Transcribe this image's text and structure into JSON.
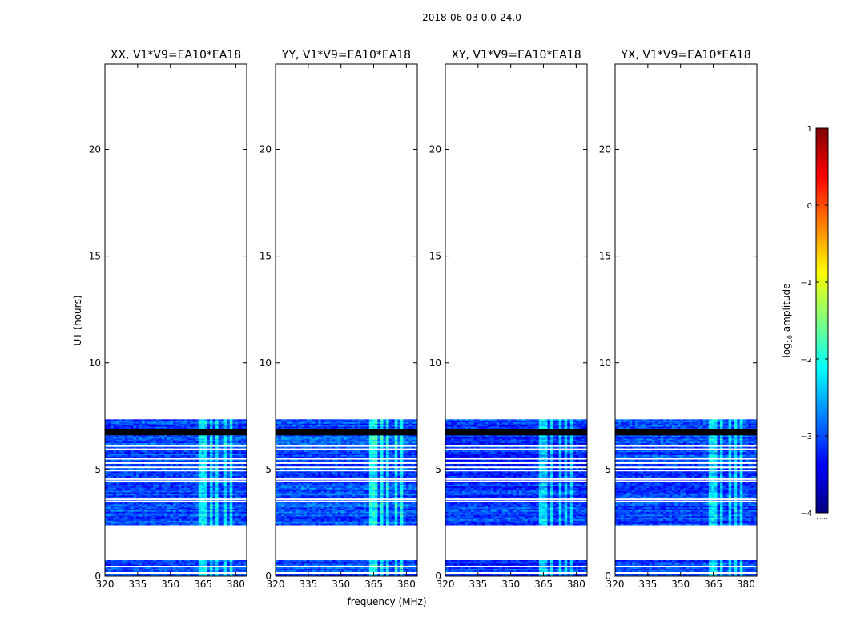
{
  "figure": {
    "suptitle": "2018-06-03 0.0-24.0",
    "ylabel": "UT (hours)",
    "xlabel": "frequency (MHz)"
  },
  "colorbar": {
    "label_prefix": "log",
    "label_sub": "10",
    "label_suffix": " amplitude",
    "range": [
      -4,
      1
    ],
    "ticks": [
      "1",
      "0",
      "−1",
      "−2",
      "−3",
      "−4"
    ],
    "tick_values": [
      1,
      0,
      -1,
      -2,
      -3,
      -4
    ],
    "footer": "......",
    "colormap": [
      "#00007f",
      "#0000ff",
      "#007fff",
      "#00ffff",
      "#7fff7f",
      "#ffff00",
      "#ff7f00",
      "#ff0000",
      "#7f0000"
    ]
  },
  "chart_data": [
    {
      "type": "heatmap",
      "title": "XX, V1*V9=EA10*EA18",
      "xlabel": "frequency (MHz)",
      "ylabel": "UT (hours)",
      "xlim": [
        320,
        385
      ],
      "ylim": [
        0,
        24
      ],
      "xticks": [
        320,
        335,
        350,
        365,
        380
      ],
      "yticks": [
        0,
        5,
        10,
        15,
        20
      ],
      "ytick_labels": [
        "0",
        "5",
        "10",
        "15",
        "20"
      ],
      "xtick_labels": [
        "320",
        "335",
        "350",
        "365",
        "380"
      ],
      "data_time_ranges_hours": [
        [
          0.0,
          0.75
        ],
        [
          2.4,
          7.35
        ]
      ],
      "blank_rows_hours": [
        0.15,
        0.45,
        3.5,
        3.6,
        4.45,
        4.55,
        4.95,
        5.1,
        5.3,
        5.5,
        5.95,
        6.1
      ],
      "flagged_black_rows_hours": [
        [
          6.6,
          6.9
        ]
      ],
      "bright_bands_MHz": [
        [
          363,
          366.5
        ],
        [
          368,
          369.5
        ],
        [
          371,
          372.5
        ],
        [
          374.5,
          375.5
        ],
        [
          377,
          378
        ]
      ],
      "log10_amplitude_background": -3.0,
      "log10_amplitude_bands": -2.2
    },
    {
      "type": "heatmap",
      "title": "YY, V1*V9=EA10*EA18",
      "xlabel": "frequency (MHz)",
      "ylabel": "UT (hours)",
      "xlim": [
        320,
        385
      ],
      "ylim": [
        0,
        24
      ],
      "xticks": [
        320,
        335,
        350,
        365,
        380
      ],
      "yticks": [
        0,
        5,
        10,
        15,
        20
      ],
      "ytick_labels": [
        "0",
        "5",
        "10",
        "15",
        "20"
      ],
      "xtick_labels": [
        "320",
        "335",
        "350",
        "365",
        "380"
      ],
      "data_time_ranges_hours": [
        [
          0.0,
          0.75
        ],
        [
          2.4,
          7.35
        ]
      ],
      "blank_rows_hours": [
        0.15,
        0.45,
        3.5,
        3.6,
        4.45,
        4.55,
        4.95,
        5.1,
        5.3,
        5.5,
        5.95,
        6.1
      ],
      "flagged_black_rows_hours": [
        [
          6.6,
          6.9
        ]
      ],
      "bright_bands_MHz": [
        [
          363,
          367
        ],
        [
          368,
          370
        ],
        [
          371,
          372.5
        ],
        [
          374,
          376.5
        ],
        [
          377,
          378
        ]
      ],
      "log10_amplitude_background": -3.0,
      "log10_amplitude_bands": -2.1
    },
    {
      "type": "heatmap",
      "title": "XY, V1*V9=EA10*EA18",
      "xlabel": "frequency (MHz)",
      "ylabel": "UT (hours)",
      "xlim": [
        320,
        385
      ],
      "ylim": [
        0,
        24
      ],
      "xticks": [
        320,
        335,
        350,
        365,
        380
      ],
      "yticks": [
        0,
        5,
        10,
        15,
        20
      ],
      "ytick_labels": [
        "0",
        "5",
        "10",
        "15",
        "20"
      ],
      "xtick_labels": [
        "320",
        "335",
        "350",
        "365",
        "380"
      ],
      "data_time_ranges_hours": [
        [
          0.0,
          0.75
        ],
        [
          2.4,
          7.35
        ]
      ],
      "blank_rows_hours": [
        0.15,
        0.45,
        3.5,
        3.6,
        4.45,
        4.55,
        4.95,
        5.1,
        5.3,
        5.5,
        5.95,
        6.1
      ],
      "flagged_black_rows_hours": [
        [
          6.6,
          6.9
        ]
      ],
      "bright_bands_MHz": [
        [
          363,
          367
        ],
        [
          368.5,
          370
        ],
        [
          372,
          373.5
        ],
        [
          375,
          376
        ],
        [
          377.5,
          378.5
        ]
      ],
      "log10_amplitude_background": -3.1,
      "log10_amplitude_bands": -2.3
    },
    {
      "type": "heatmap",
      "title": "YX, V1*V9=EA10*EA18",
      "xlabel": "frequency (MHz)",
      "ylabel": "UT (hours)",
      "xlim": [
        320,
        385
      ],
      "ylim": [
        0,
        24
      ],
      "xticks": [
        320,
        335,
        350,
        365,
        380
      ],
      "yticks": [
        0,
        5,
        10,
        15,
        20
      ],
      "ytick_labels": [
        "0",
        "5",
        "10",
        "15",
        "20"
      ],
      "xtick_labels": [
        "320",
        "335",
        "350",
        "365",
        "380"
      ],
      "data_time_ranges_hours": [
        [
          0.0,
          0.75
        ],
        [
          2.4,
          7.35
        ]
      ],
      "blank_rows_hours": [
        0.15,
        0.45,
        3.5,
        3.6,
        4.45,
        4.55,
        4.95,
        5.1,
        5.3,
        5.5,
        5.95,
        6.1
      ],
      "flagged_black_rows_hours": [
        [
          6.6,
          6.9
        ]
      ],
      "bright_bands_MHz": [
        [
          363,
          367
        ],
        [
          368.5,
          370
        ],
        [
          371.5,
          373
        ],
        [
          374.5,
          376
        ],
        [
          377,
          378
        ]
      ],
      "log10_amplitude_background": -3.1,
      "log10_amplitude_bands": -2.3
    }
  ]
}
